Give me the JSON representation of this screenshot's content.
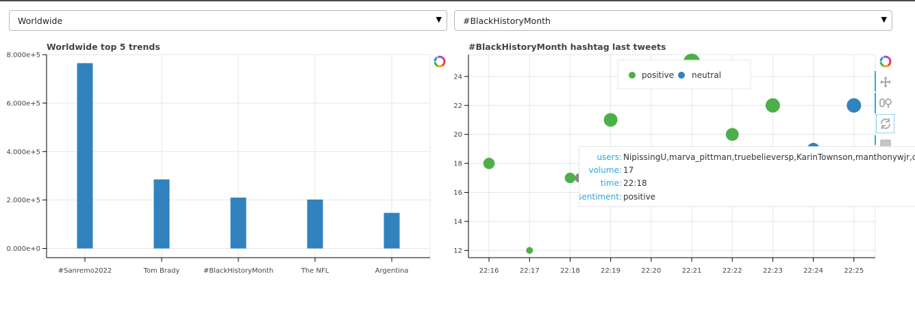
{
  "selectors": {
    "left": {
      "value": "Worldwide"
    },
    "right": {
      "value": "#BlackHistoryMonth"
    }
  },
  "icons": {
    "logo": "bokeh-logo-icon",
    "dropdown": "caret-down-icon",
    "pan": "pan-tool-icon",
    "zoom": "wheel-zoom-icon",
    "reset": "reset-tool-icon",
    "save": "save-tool-icon"
  },
  "chart_data": [
    {
      "type": "bar",
      "title": "Worldwide top 5 trends",
      "categories": [
        "#Sanremo2022",
        "Tom Brady",
        "#BlackHistoryMonth",
        "The NFL",
        "Argentina"
      ],
      "values": [
        765000,
        285000,
        210000,
        202000,
        147000
      ],
      "ylim": [
        -38000,
        800000
      ],
      "yticks": [
        0,
        200000,
        400000,
        600000,
        800000
      ],
      "ytick_labels": [
        "0.000e+0",
        "2.000e+5",
        "4.000e+5",
        "6.000e+5",
        "8.000e+5"
      ],
      "color": "#3182bd",
      "grid": true
    },
    {
      "type": "scatter",
      "title": "#BlackHistoryMonth hashtag last tweets",
      "xlim": [
        22.16,
        22.25
      ],
      "ylim": [
        11.5,
        25.5
      ],
      "xtick_labels": [
        "22:16",
        "22:17",
        "22:18",
        "22:19",
        "22:20",
        "22:21",
        "22:22",
        "22:23",
        "22:24",
        "22:25"
      ],
      "yticks": [
        12,
        14,
        16,
        18,
        20,
        22,
        24
      ],
      "series": [
        {
          "name": "positive",
          "color": "#4daf4a",
          "points": [
            {
              "x": "22:16",
              "y": 18
            },
            {
              "x": "22:17",
              "y": 12
            },
            {
              "x": "22:18",
              "y": 17
            },
            {
              "x": "22:19",
              "y": 21
            },
            {
              "x": "22:20",
              "y": 24
            },
            {
              "x": "22:21",
              "y": 25
            },
            {
              "x": "22:22",
              "y": 20
            },
            {
              "x": "22:23",
              "y": 22
            }
          ]
        },
        {
          "name": "neutral",
          "color": "#3182bd",
          "points": [
            {
              "x": "22:24",
              "y": 19
            },
            {
              "x": "22:25",
              "y": 22
            }
          ]
        }
      ],
      "legend": {
        "placement": "top-center",
        "entries": [
          "positive",
          "neutral"
        ]
      },
      "tooltip": {
        "users_key": "users:",
        "users": "NipissingU,marva_pittman,truebelieversp,KarinTownson,manthonywjr,cornax,Hig",
        "volume_key": "volume:",
        "volume": "17",
        "time_key": "time:",
        "time": "22:18",
        "sentiment_key": "sentiment:",
        "sentiment": "positive"
      },
      "grid": true
    }
  ]
}
